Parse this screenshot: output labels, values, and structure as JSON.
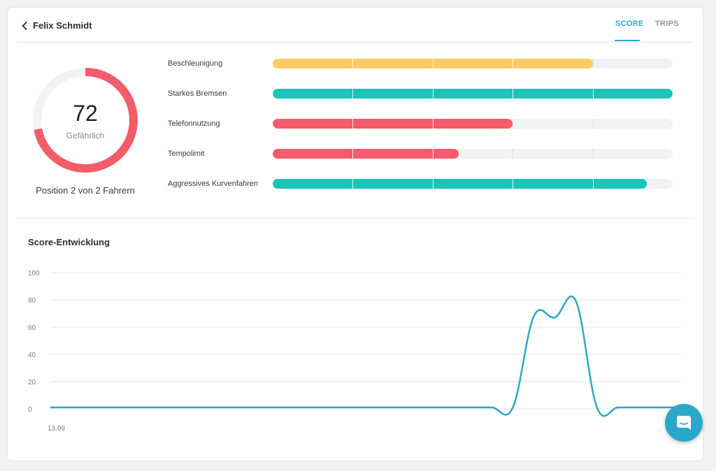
{
  "header": {
    "driver_name": "Felix Schmidt",
    "tabs": [
      {
        "label": "SCORE",
        "active": true
      },
      {
        "label": "TRIPS",
        "active": false
      }
    ]
  },
  "score": {
    "value": "72",
    "label": "Gefährlich",
    "fraction": 0.72,
    "color": "#f25c6b",
    "rank_text": "Position 2 von 2 Fahrern"
  },
  "metrics": [
    {
      "label": "Beschleunigung",
      "fraction": 0.8,
      "color": "#fccb63"
    },
    {
      "label": "Starkes Bremsen",
      "fraction": 1.0,
      "color": "#1cc3b9"
    },
    {
      "label": "Telefonnutzung",
      "fraction": 0.6,
      "color": "#f25c6b"
    },
    {
      "label": "Tempolimit",
      "fraction": 0.465,
      "color": "#f25c6b"
    },
    {
      "label": "Aggressives Kurvenfahren",
      "fraction": 0.935,
      "color": "#1cc3b9"
    }
  ],
  "chart_title": "Score-Entwicklung",
  "chart_data": {
    "type": "line",
    "title": "Score-Entwicklung",
    "xlabel": "",
    "ylabel": "",
    "ylim": [
      0,
      100
    ],
    "yticks": [
      "0",
      "20",
      "40",
      "60",
      "80",
      "100"
    ],
    "xtick_labels": [
      "13.09"
    ],
    "grid": true,
    "color": "#2aa8c9",
    "series": [
      {
        "x": [
          0,
          1,
          2,
          3,
          4,
          5,
          6,
          7,
          8,
          9,
          10,
          11,
          12,
          13,
          14,
          15,
          16,
          17,
          18,
          19,
          20,
          21,
          22,
          23,
          24,
          25,
          26,
          27,
          28,
          29,
          30
        ],
        "values": [
          1,
          1,
          1,
          1,
          1,
          1,
          1,
          1,
          1,
          1,
          1,
          1,
          1,
          1,
          1,
          1,
          1,
          1,
          1,
          1,
          1,
          1,
          1,
          68,
          67,
          79,
          1,
          1,
          1,
          1,
          1
        ]
      }
    ]
  },
  "colors": {
    "accent": "#2aa8c9",
    "track": "#f1f2f4"
  },
  "icons": {
    "back": "chevron-left-icon",
    "chat": "chat-bubble-icon"
  }
}
